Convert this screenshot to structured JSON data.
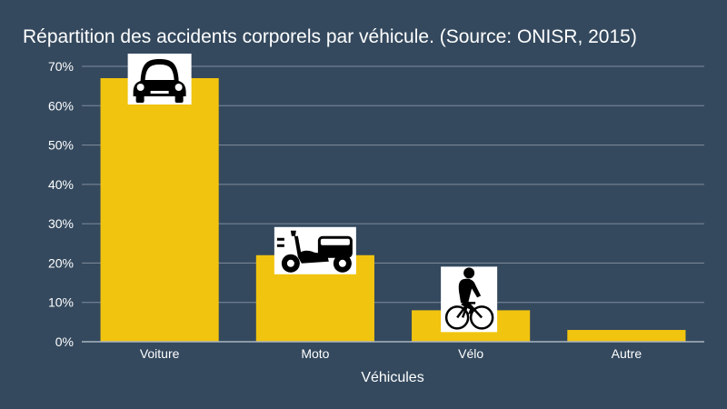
{
  "chart_data": {
    "type": "bar",
    "title": "Répartition des accidents corporels par véhicule. (Source: ONISR, 2015)",
    "xlabel": "Véhicules",
    "ylabel": "",
    "categories": [
      "Voiture",
      "Moto",
      "Vélo",
      "Autre"
    ],
    "values": [
      67,
      22,
      8,
      3
    ],
    "icons": [
      "car-icon",
      "scooter-icon",
      "cyclist-icon",
      ""
    ],
    "ylim": [
      0,
      70
    ],
    "yticks": [
      0,
      10,
      20,
      30,
      40,
      50,
      60,
      70
    ],
    "tick_suffix": "%",
    "grid": true,
    "legend": "none",
    "colors": {
      "bar": "#f1c40f",
      "background": "#34495e",
      "text": "#ffffff",
      "grid": "#7f8c9d"
    }
  }
}
